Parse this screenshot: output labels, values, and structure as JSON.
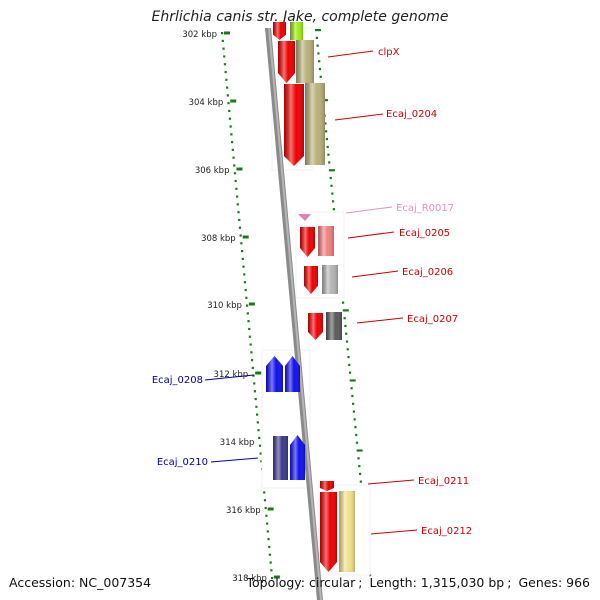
{
  "title": "Ehrlichia canis str. Jake, complete genome",
  "footer": {
    "accession_label": "Accession:",
    "accession": "NC_007354",
    "topology_label": "Topology:",
    "topology": "circular",
    "length_label": "Length:",
    "length": "1,315,030 bp",
    "genes_label": "Genes:",
    "genes": "966"
  },
  "ruler": {
    "unit": "kbp",
    "ticks": [
      "302 kbp",
      "304 kbp",
      "306 kbp",
      "308 kbp",
      "310 kbp",
      "312 kbp",
      "314 kbp",
      "316 kbp",
      "318 kbp"
    ]
  },
  "colors": {
    "backbone": "#8a8a8a",
    "ruler": "#1a7a1a",
    "red_gene": "#ee0000",
    "blue_gene": "#1010ee",
    "navy_gene": "#3a3a8c",
    "olive_gene": "#b8b07a",
    "pink_gene": "#e87fb0",
    "salmon_gene": "#f08080",
    "grey_gene": "#b4b4b4",
    "darkgrey_gene": "#5a5a5a",
    "yellow_gene": "#f0e08a",
    "lime_gene": "#9aee10",
    "red_label": "#cc0000",
    "blue_label": "#0000aa",
    "pink_label": "#e88fbf"
  },
  "gene_labels": [
    {
      "name": "clpX",
      "color": "red_label"
    },
    {
      "name": "Ecaj_0204",
      "color": "red_label"
    },
    {
      "name": "Ecaj_R0017",
      "color": "pink_label"
    },
    {
      "name": "Ecaj_0205",
      "color": "red_label"
    },
    {
      "name": "Ecaj_0206",
      "color": "red_label"
    },
    {
      "name": "Ecaj_0207",
      "color": "red_label"
    },
    {
      "name": "Ecaj_0208",
      "color": "blue_label"
    },
    {
      "name": "Ecaj_0210",
      "color": "blue_label"
    },
    {
      "name": "Ecaj_0211",
      "color": "red_label"
    },
    {
      "name": "Ecaj_0212",
      "color": "red_label"
    }
  ],
  "icons": {
    "forward_gene": "arrow-down-gene-icon",
    "reverse_gene": "arrow-up-gene-icon",
    "rna_gene": "triangle-down-icon"
  }
}
